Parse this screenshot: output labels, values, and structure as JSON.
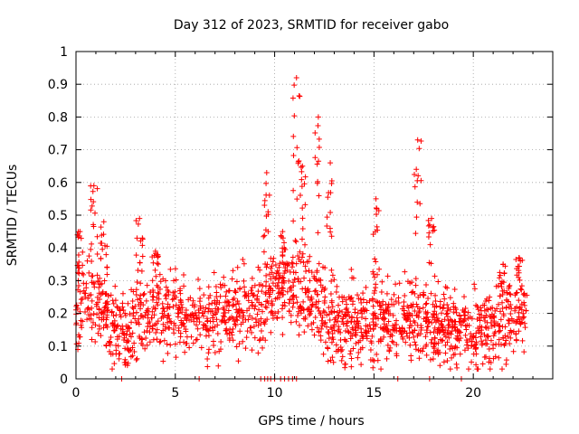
{
  "chart_data": {
    "type": "scatter",
    "title": "Day 312 of 2023, SRMTID for receiver gabo",
    "xlabel": "GPS time / hours",
    "ylabel": "SRMTID / TECUs",
    "xlim": [
      0,
      24
    ],
    "ylim": [
      0,
      1
    ],
    "x_ticks": [
      "0",
      "5",
      "10",
      "15",
      "20"
    ],
    "x_tick_values": [
      0,
      5,
      10,
      15,
      20
    ],
    "y_ticks": [
      "0",
      "0.1",
      "0.2",
      "0.3",
      "0.4",
      "0.5",
      "0.6",
      "0.7",
      "0.8",
      "0.9",
      "1"
    ],
    "y_tick_values": [
      0,
      0.1,
      0.2,
      0.3,
      0.4,
      0.5,
      0.6,
      0.7,
      0.8,
      0.9,
      1.0
    ],
    "grid": true,
    "marker": "plus",
    "color": "#ff0000",
    "series": [
      {
        "name": "SRMTID",
        "x_range": [
          0,
          22.7
        ],
        "baseline_level": [
          [
            0.0,
            0.22
          ],
          [
            1.0,
            0.24
          ],
          [
            2.0,
            0.16
          ],
          [
            3.0,
            0.17
          ],
          [
            4.0,
            0.22
          ],
          [
            5.0,
            0.19
          ],
          [
            6.0,
            0.18
          ],
          [
            7.0,
            0.17
          ],
          [
            8.0,
            0.2
          ],
          [
            9.0,
            0.22
          ],
          [
            10.0,
            0.26
          ],
          [
            11.0,
            0.3
          ],
          [
            12.0,
            0.22
          ],
          [
            13.0,
            0.17
          ],
          [
            14.0,
            0.17
          ],
          [
            15.0,
            0.18
          ],
          [
            16.0,
            0.17
          ],
          [
            17.0,
            0.19
          ],
          [
            18.0,
            0.15
          ],
          [
            19.0,
            0.16
          ],
          [
            20.0,
            0.13
          ],
          [
            21.0,
            0.17
          ],
          [
            22.0,
            0.2
          ],
          [
            22.7,
            0.22
          ]
        ],
        "peaks": [
          {
            "x": 0.2,
            "y": 0.45
          },
          {
            "x": 0.9,
            "y": 0.59
          },
          {
            "x": 1.4,
            "y": 0.48
          },
          {
            "x": 3.2,
            "y": 0.49
          },
          {
            "x": 4.0,
            "y": 0.39
          },
          {
            "x": 9.6,
            "y": 0.63
          },
          {
            "x": 10.4,
            "y": 0.45
          },
          {
            "x": 11.1,
            "y": 0.92
          },
          {
            "x": 11.4,
            "y": 0.65
          },
          {
            "x": 12.2,
            "y": 0.8
          },
          {
            "x": 12.8,
            "y": 0.66
          },
          {
            "x": 15.1,
            "y": 0.55
          },
          {
            "x": 17.2,
            "y": 0.73
          },
          {
            "x": 17.9,
            "y": 0.49
          },
          {
            "x": 21.5,
            "y": 0.35
          },
          {
            "x": 22.3,
            "y": 0.37
          }
        ],
        "zero_points_x": [
          2.3,
          6.2,
          9.3,
          9.5,
          9.65,
          9.8,
          10.0,
          10.3,
          10.5,
          10.7,
          10.9,
          11.1,
          16.2,
          17.8,
          19.4
        ]
      }
    ]
  }
}
